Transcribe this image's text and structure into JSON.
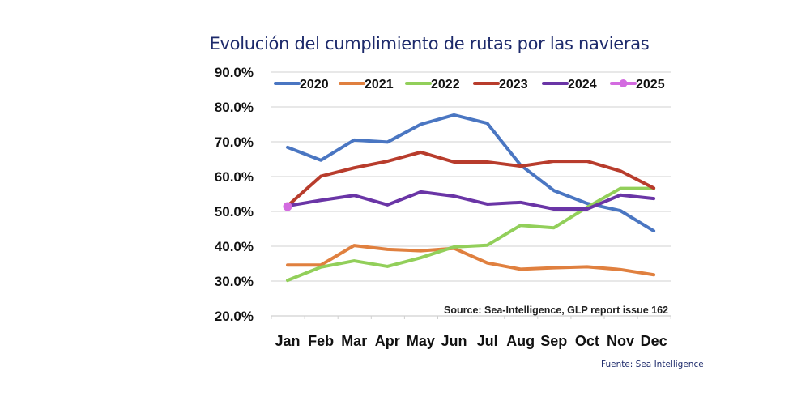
{
  "chart_data": {
    "type": "line",
    "title": "Evolución del cumplimiento de rutas por las navieras",
    "xlabel": "",
    "ylabel": "",
    "categories": [
      "Jan",
      "Feb",
      "Mar",
      "Apr",
      "May",
      "Jun",
      "Jul",
      "Aug",
      "Sep",
      "Oct",
      "Nov",
      "Dec"
    ],
    "ylim": [
      20,
      90
    ],
    "yticks": [
      20,
      30,
      40,
      50,
      60,
      70,
      80,
      90
    ],
    "ytick_labels": [
      "20.0%",
      "30.0%",
      "40.0%",
      "50.0%",
      "60.0%",
      "70.0%",
      "80.0%",
      "90.0%"
    ],
    "grid": true,
    "legend_position": "top",
    "series": [
      {
        "name": "2020",
        "color": "#4a76c2",
        "marker": false,
        "values": [
          68.4,
          64.7,
          70.5,
          69.9,
          75.0,
          77.7,
          75.3,
          63.3,
          56.0,
          52.3,
          50.2,
          44.4
        ]
      },
      {
        "name": "2021",
        "color": "#e0803f",
        "marker": false,
        "values": [
          34.6,
          34.6,
          40.2,
          39.1,
          38.7,
          39.4,
          35.2,
          33.4,
          33.8,
          34.1,
          33.3,
          31.8
        ]
      },
      {
        "name": "2022",
        "color": "#92cf5a",
        "marker": false,
        "values": [
          30.2,
          34.0,
          35.8,
          34.2,
          36.7,
          39.8,
          40.3,
          46.0,
          45.3,
          51.2,
          56.6,
          56.6
        ]
      },
      {
        "name": "2023",
        "color": "#b83c2c",
        "marker": false,
        "values": [
          51.6,
          60.1,
          62.5,
          64.4,
          67.0,
          64.2,
          64.2,
          63.0,
          64.4,
          64.4,
          61.6,
          56.7
        ]
      },
      {
        "name": "2024",
        "color": "#6a35a6",
        "marker": false,
        "values": [
          51.6,
          53.2,
          54.6,
          51.9,
          55.6,
          54.4,
          52.1,
          52.6,
          50.7,
          50.7,
          54.7,
          53.7
        ]
      },
      {
        "name": "2025",
        "color": "#d36be0",
        "marker": true,
        "values": [
          51.4
        ]
      }
    ],
    "annotations": [
      "Source: Sea-Intelligence, GLP report issue 162"
    ]
  },
  "footer": {
    "credit": "Fuente: Sea Intelligence"
  }
}
